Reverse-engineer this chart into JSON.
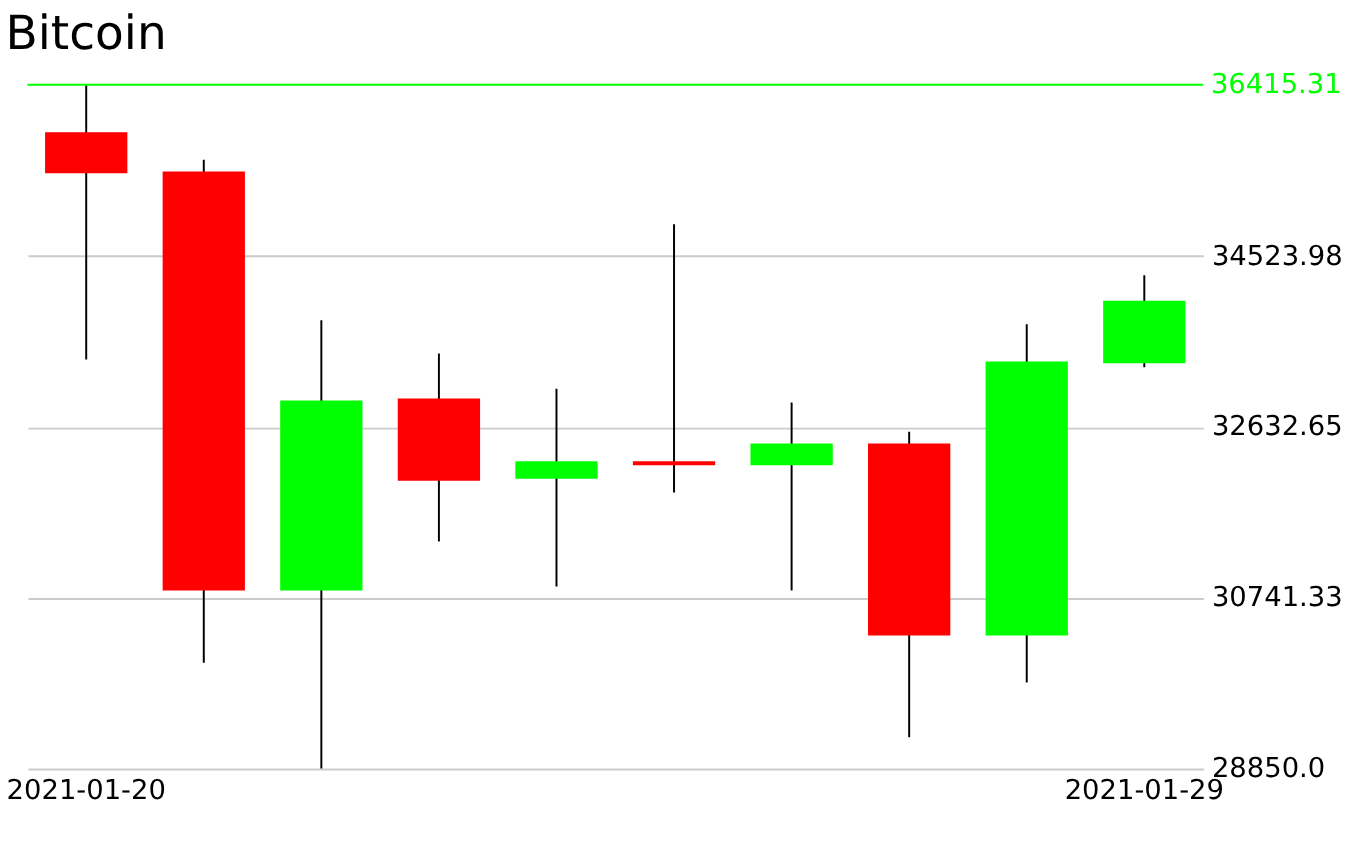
{
  "chart_data": {
    "type": "candlestick",
    "title": "Bitcoin",
    "categories": [
      "2021-01-20",
      null,
      null,
      null,
      null,
      null,
      null,
      null,
      null,
      "2021-01-29"
    ],
    "ohlc": [
      [
        35890,
        36410,
        33377,
        35435
      ],
      [
        35456,
        35586,
        30020,
        30821
      ],
      [
        30821,
        33810,
        28850,
        32922
      ],
      [
        32944,
        33442,
        31363,
        32034
      ],
      [
        32056,
        33052,
        30864,
        32251
      ],
      [
        32251,
        34871,
        31904,
        32207
      ],
      [
        32207,
        32900,
        30821,
        32446
      ],
      [
        32446,
        32576,
        29197,
        30323
      ],
      [
        30323,
        33767,
        29803,
        33355
      ],
      [
        33334,
        34308,
        33290,
        34027
      ]
    ],
    "colors": [
      "#ff0000",
      "#ff0000",
      "#00ff00",
      "#ff0000",
      "#00ff00",
      "#ff0000",
      "#00ff00",
      "#ff0000",
      "#00ff00",
      "#00ff00"
    ],
    "ylim": [
      28850,
      36415.31
    ],
    "yticks": [
      {
        "value": 28850,
        "label": "28850.0"
      },
      30741.33,
      32632.65,
      34523.98
    ],
    "ref_lines": [
      {
        "axis": "y",
        "value": 36415.31,
        "label": "36415.31",
        "color": "#00ff00"
      }
    ],
    "grid": "y"
  }
}
